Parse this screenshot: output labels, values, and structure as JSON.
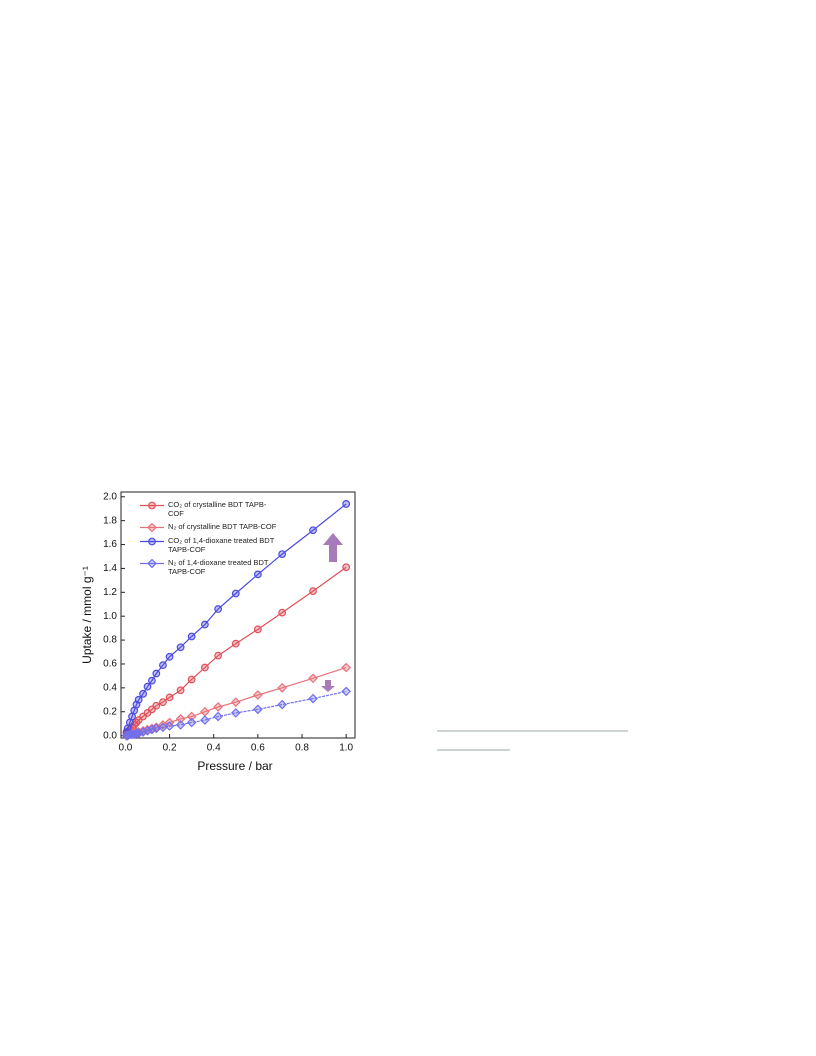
{
  "chart_data": {
    "type": "line",
    "xlabel": "Pressure / bar",
    "ylabel": "Uptake / mmol g⁻¹",
    "xlim": [
      -0.02,
      1.04
    ],
    "ylim": [
      -0.02,
      2.04
    ],
    "xticks": [
      {
        "value": 0,
        "label": "0.0"
      },
      0.2,
      0.4,
      0.6,
      0.8,
      {
        "value": 1,
        "label": "1.0"
      }
    ],
    "yticks": [
      {
        "value": 0,
        "label": "0.0"
      },
      0.2,
      0.4,
      0.6,
      0.8,
      {
        "value": 1,
        "label": "1.0"
      },
      1.2,
      1.4,
      1.6,
      1.8,
      {
        "value": 2,
        "label": "2.0"
      }
    ],
    "x": [
      0.005,
      0.01,
      0.02,
      0.03,
      0.04,
      0.05,
      0.06,
      0.08,
      0.1,
      0.12,
      0.14,
      0.17,
      0.2,
      0.25,
      0.3,
      0.36,
      0.42,
      0.5,
      0.6,
      0.71,
      0.85,
      1.0
    ],
    "series": [
      {
        "name": "CO₂ of crystalline BDT TAPB-COF",
        "color": "#e0505a",
        "marker": "circle",
        "values": [
          0.02,
          0.03,
          0.05,
          0.07,
          0.09,
          0.11,
          0.13,
          0.16,
          0.19,
          0.22,
          0.25,
          0.28,
          0.32,
          0.38,
          0.47,
          0.57,
          0.67,
          0.77,
          0.89,
          1.03,
          1.21,
          1.41
        ]
      },
      {
        "name": "N₂ of crystalline BDT TAPB-COF",
        "color": "#e9707a",
        "marker": "diamond",
        "values": [
          0.0,
          0.01,
          0.01,
          0.02,
          0.02,
          0.03,
          0.03,
          0.04,
          0.05,
          0.06,
          0.07,
          0.09,
          0.11,
          0.14,
          0.16,
          0.2,
          0.24,
          0.28,
          0.34,
          0.4,
          0.48,
          0.57
        ]
      },
      {
        "name": "CO₂ of 1,4-dioxane treated BDT TAPB-COF",
        "color": "#4a4ae0",
        "marker": "circle",
        "values": [
          0.03,
          0.06,
          0.11,
          0.16,
          0.21,
          0.26,
          0.3,
          0.35,
          0.41,
          0.46,
          0.52,
          0.59,
          0.66,
          0.74,
          0.83,
          0.93,
          1.06,
          1.19,
          1.35,
          1.52,
          1.72,
          1.94
        ]
      },
      {
        "name": "N₂ of 1,4-dioxane treated BDT TAPB-COF",
        "color": "#7070ee",
        "marker": "diamond",
        "values": [
          0.0,
          0.0,
          0.01,
          0.01,
          0.01,
          0.02,
          0.02,
          0.03,
          0.04,
          0.05,
          0.06,
          0.07,
          0.08,
          0.09,
          0.11,
          0.13,
          0.16,
          0.19,
          0.22,
          0.26,
          0.31,
          0.37
        ]
      }
    ]
  }
}
